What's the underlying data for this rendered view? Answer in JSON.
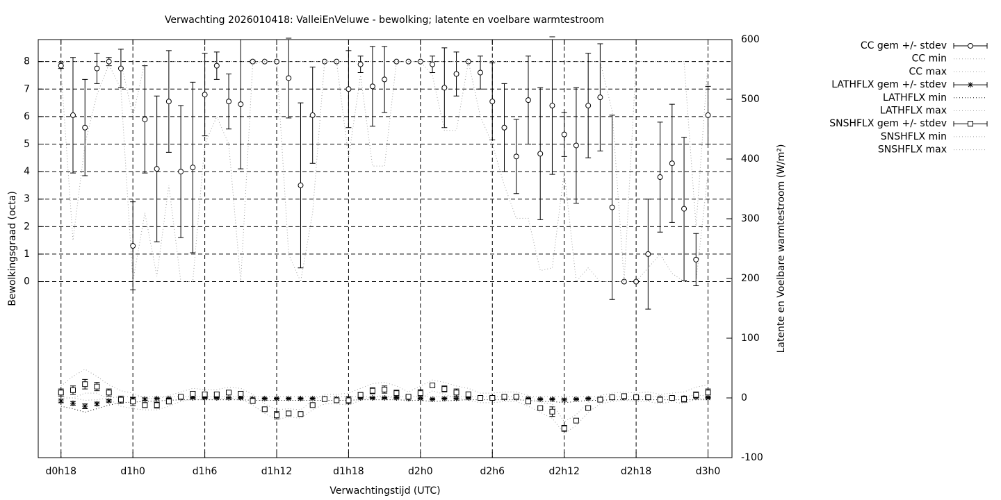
{
  "chart_data": {
    "type": "errorbar",
    "title": "Verwachting 2026010418: ValleiEnVeluwe - bewolking; latente en voelbare warmtestroom",
    "x_label": "Verwachtingstijd (UTC)",
    "y_label": "Bewolkingsgraad (octa)",
    "y2_label": "Latente en Voelbare warmtestroom (W/m²)",
    "grid": true,
    "legend": "outside-right",
    "xlim": [
      16.1,
      74
    ],
    "xticks": [
      {
        "value": 18,
        "label": "d0h18"
      },
      {
        "value": 24,
        "label": "d1h0"
      },
      {
        "value": 30,
        "label": "d1h6"
      },
      {
        "value": 36,
        "label": "d1h12"
      },
      {
        "value": 42,
        "label": "d1h18"
      },
      {
        "value": 48,
        "label": "d2h0"
      },
      {
        "value": 54,
        "label": "d2h6"
      },
      {
        "value": 60,
        "label": "d2h12"
      },
      {
        "value": 66,
        "label": "d2h18"
      },
      {
        "value": 72,
        "label": "d3h0"
      }
    ],
    "ylim": [
      -6.4,
      8.8
    ],
    "yticks": [
      0,
      1,
      2,
      3,
      4,
      5,
      6,
      7,
      8
    ],
    "y2lim": [
      -100,
      600
    ],
    "y2ticks": [
      -100,
      0,
      100,
      200,
      300,
      400,
      500,
      600
    ],
    "x": [
      18,
      19,
      20,
      21,
      22,
      23,
      24,
      25,
      26,
      27,
      28,
      29,
      30,
      31,
      32,
      33,
      34,
      35,
      36,
      37,
      38,
      39,
      40,
      41,
      42,
      43,
      44,
      45,
      46,
      47,
      48,
      49,
      50,
      51,
      52,
      53,
      54,
      55,
      56,
      57,
      58,
      59,
      60,
      61,
      62,
      63,
      64,
      65,
      66,
      67,
      68,
      69,
      70,
      71,
      72
    ],
    "series": [
      {
        "name": "CC gem +/- stdev",
        "style": "errorbars",
        "marker": "circle",
        "axis": "y",
        "color": "#000000",
        "values": [
          7.85,
          6.05,
          5.6,
          7.75,
          8,
          7.75,
          1.3,
          5.9,
          4.1,
          6.55,
          4.0,
          4.15,
          6.8,
          7.85,
          6.55,
          6.45,
          8,
          8,
          8,
          7.4,
          3.5,
          6.05,
          8,
          8,
          7.0,
          7.9,
          7.1,
          7.35,
          8,
          8,
          8,
          7.9,
          7.05,
          7.55,
          8,
          7.6,
          6.55,
          5.6,
          4.55,
          6.6,
          4.65,
          6.4,
          5.35,
          4.95,
          6.4,
          6.7,
          2.7,
          0,
          0,
          1.0,
          3.8,
          4.3,
          2.65,
          0.8,
          6.05
        ],
        "errors": [
          0.1,
          2.1,
          1.75,
          0.55,
          0.15,
          0.7,
          1.6,
          1.95,
          2.65,
          1.85,
          2.4,
          3.1,
          1.5,
          0.5,
          1.0,
          2.35,
          0.05,
          0,
          0,
          1.45,
          3.0,
          1.75,
          0,
          0,
          1.4,
          0.3,
          1.45,
          1.2,
          0,
          0,
          0,
          0.3,
          1.45,
          0.8,
          0,
          0.6,
          1.4,
          1.6,
          1.35,
          1.6,
          2.4,
          2.5,
          0.8,
          2.1,
          1.9,
          1.95,
          3.35,
          0,
          0,
          2.0,
          2.0,
          2.15,
          2.6,
          0.95,
          1.05
        ]
      },
      {
        "name": "CC min",
        "style": "dotted",
        "axis": "y",
        "color": "#a0a0a0",
        "values": [
          7.7,
          1.5,
          5,
          6.8,
          7.9,
          7,
          0,
          2.5,
          0.2,
          3.5,
          0,
          0,
          5,
          6,
          5,
          0,
          7.9,
          8,
          8,
          1,
          0,
          2.5,
          8,
          8,
          4.5,
          7.5,
          4.2,
          4.2,
          8,
          8,
          8,
          7.5,
          5.5,
          5.5,
          8,
          6,
          5,
          3.5,
          2.3,
          2.3,
          0.4,
          0.5,
          4,
          0,
          0.5,
          0,
          0,
          0,
          0,
          0.5,
          1,
          0.3,
          0,
          0,
          4
        ]
      },
      {
        "name": "CC max",
        "style": "dotted",
        "axis": "y",
        "color": "#a0a0a0",
        "values": [
          8,
          8,
          8,
          8,
          8,
          8,
          6,
          8,
          8,
          8,
          8,
          8,
          8,
          8,
          8,
          8,
          8,
          8,
          8,
          8,
          8,
          8,
          8,
          8,
          8,
          8,
          8,
          8,
          8,
          8,
          8,
          8,
          8,
          8,
          8,
          8,
          8,
          8,
          8,
          8,
          8,
          8,
          8,
          8,
          8,
          8,
          6.2,
          0,
          8,
          8,
          8,
          8,
          8,
          2,
          8
        ]
      },
      {
        "name": "LATHFLX gem +/- stdev",
        "style": "errorbars",
        "marker": "star",
        "axis": "y2",
        "color": "#000000",
        "values": [
          -5,
          -9,
          -14,
          -10,
          -5,
          -2,
          -2,
          -2,
          -1,
          -1,
          0,
          0,
          0,
          0,
          0,
          0,
          -1,
          -1,
          -1,
          -1,
          -1,
          -1,
          -1,
          -1,
          -1,
          0,
          0,
          0,
          0,
          -1,
          -1,
          -2,
          -1,
          -1,
          0,
          0,
          0,
          0,
          0,
          -1,
          -2,
          -2,
          -3,
          -2,
          -1,
          -1,
          0,
          0,
          0,
          0,
          0,
          0,
          0,
          1,
          0
        ],
        "errors": [
          3,
          3,
          4,
          3,
          2,
          2,
          2,
          2,
          1,
          1,
          1,
          1,
          1,
          1,
          1,
          1,
          1,
          1,
          1,
          1,
          1,
          1,
          1,
          1,
          1,
          1,
          1,
          1,
          1,
          1,
          1,
          1,
          1,
          1,
          1,
          1,
          1,
          1,
          1,
          1,
          1,
          1,
          2,
          1,
          1,
          1,
          1,
          1,
          1,
          1,
          1,
          1,
          1,
          1,
          1
        ]
      },
      {
        "name": "LATHFLX min",
        "style": "dotted",
        "axis": "y2",
        "color": "#000000",
        "values": [
          -14,
          -18,
          -24,
          -18,
          -12,
          -8,
          -7,
          -6,
          -5,
          -4,
          -3,
          -3,
          -3,
          -3,
          -3,
          -3,
          -4,
          -4,
          -4,
          -4,
          -4,
          -4,
          -4,
          -4,
          -4,
          -3,
          -3,
          -3,
          -3,
          -4,
          -4,
          -6,
          -5,
          -4,
          -3,
          -3,
          -3,
          -3,
          -3,
          -4,
          -6,
          -6,
          -8,
          -6,
          -4,
          -4,
          -3,
          -3,
          -3,
          -3,
          -3,
          -3,
          -3,
          -3,
          -3
        ]
      },
      {
        "name": "LATHFLX max",
        "style": "dotted",
        "axis": "y2",
        "color": "#a0a0a0",
        "values": [
          2,
          0,
          -4,
          -3,
          0,
          2,
          2,
          2,
          2,
          2,
          2,
          2,
          2,
          2,
          2,
          2,
          2,
          2,
          2,
          2,
          2,
          2,
          2,
          2,
          2,
          2,
          2,
          2,
          2,
          2,
          2,
          2,
          2,
          2,
          2,
          2,
          2,
          2,
          2,
          2,
          2,
          2,
          2,
          2,
          2,
          2,
          2,
          2,
          2,
          2,
          2,
          2,
          2,
          5,
          3
        ]
      },
      {
        "name": "SNSHFLX gem +/- stdev",
        "style": "errorbars",
        "marker": "square",
        "axis": "y2",
        "color": "#000000",
        "values": [
          9,
          13,
          23,
          19,
          9,
          -3,
          -6,
          -12,
          -12,
          -6,
          2,
          7,
          6,
          6,
          9,
          7,
          -5,
          -19,
          -29,
          -26,
          -27,
          -12,
          -2,
          -4,
          -4,
          5,
          12,
          14,
          8,
          2,
          8,
          21,
          15,
          9,
          6,
          0,
          0,
          2,
          2,
          -6,
          -17,
          -23,
          -51,
          -38,
          -17,
          -3,
          1,
          3,
          1,
          1,
          -3,
          0,
          -2,
          5,
          9
        ],
        "errors": [
          6,
          7,
          8,
          7,
          6,
          6,
          7,
          4,
          5,
          4,
          2,
          3,
          3,
          3,
          3,
          3,
          4,
          3,
          6,
          4,
          2,
          2,
          2,
          2,
          6,
          4,
          5,
          6,
          5,
          2,
          6,
          2,
          5,
          6,
          4,
          4,
          3,
          2,
          2,
          3,
          2,
          8,
          5,
          2,
          2,
          3,
          2,
          3,
          2,
          2,
          3,
          2,
          5,
          5,
          6
        ]
      },
      {
        "name": "SNSHFLX min",
        "style": "dotted",
        "axis": "y2",
        "color": "#a0a0a0",
        "values": [
          -2,
          0,
          8,
          8,
          -2,
          -14,
          -18,
          -20,
          -20,
          -14,
          -6,
          -2,
          -2,
          -2,
          0,
          -2,
          -12,
          -26,
          -36,
          -32,
          -34,
          -20,
          -10,
          -10,
          -12,
          -4,
          2,
          4,
          -2,
          -6,
          -2,
          12,
          6,
          0,
          -4,
          -8,
          -8,
          -6,
          -6,
          -14,
          -24,
          -34,
          -60,
          -46,
          -24,
          -10,
          -6,
          -4,
          -6,
          -6,
          -10,
          -6,
          -10,
          -2,
          0
        ]
      },
      {
        "name": "SNSHFLX max",
        "style": "dotted",
        "axis": "y2",
        "color": "#a0a0a0",
        "values": [
          20,
          36,
          48,
          36,
          22,
          12,
          8,
          0,
          -2,
          4,
          10,
          16,
          14,
          14,
          18,
          16,
          6,
          -10,
          -20,
          -18,
          -20,
          -4,
          6,
          6,
          8,
          16,
          24,
          26,
          20,
          10,
          20,
          30,
          26,
          20,
          16,
          8,
          8,
          10,
          10,
          4,
          -8,
          -10,
          -40,
          -28,
          -8,
          4,
          8,
          10,
          8,
          10,
          6,
          8,
          10,
          18,
          22
        ]
      }
    ]
  }
}
